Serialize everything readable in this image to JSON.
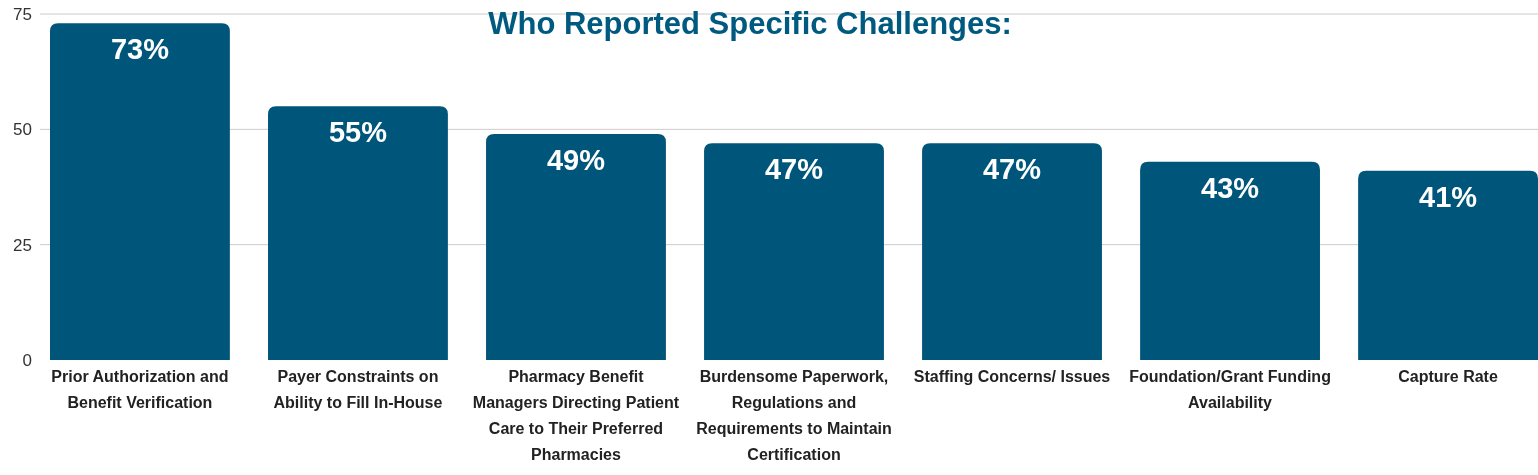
{
  "chart_data": {
    "type": "bar",
    "title": "Who Reported Specific Challenges:",
    "categories": [
      "Prior Authorization and Benefit Verification",
      "Payer Constraints on Ability to Fill In-House",
      "Pharmacy Benefit Managers Directing Patient Care to Their Preferred Pharmacies",
      "Burdensome Paperwork, Regulations and Requirements to Maintain Certification",
      "Staffing Concerns/ Issues",
      "Foundation/Grant Funding Availability",
      "Capture Rate"
    ],
    "values": [
      73,
      55,
      49,
      47,
      47,
      43,
      41
    ],
    "value_labels": [
      "73%",
      "55%",
      "49%",
      "47%",
      "47%",
      "43%",
      "41%"
    ],
    "color": "#00567a",
    "ylim": [
      0,
      75
    ],
    "yticks": [
      0,
      25,
      50,
      75
    ],
    "grid": "y"
  }
}
